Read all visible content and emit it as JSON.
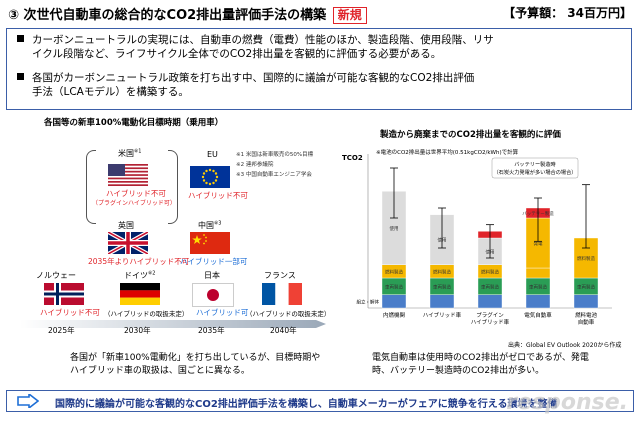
{
  "header": {
    "title": "③ 次世代自動車の総合的なCO2排出量評価手法の構築",
    "new_label": "新規",
    "budget": "【予算額： 34百万円】"
  },
  "intro": {
    "bullets": [
      {
        "line1": "カーボンニュートラルの実現には、自動車の燃費（電費）性能のほか、製造段階、使用段階、リサ",
        "line2": "イクル段階など、ライフサイクル全体でのCO2排出量を客観的に評価する必要がある。"
      },
      {
        "line1": "各国がカーボンニュートラル政策を打ち出す中、国際的に議論が可能な客観的なCO2排出評価",
        "line2": "手法（LCAモデル）を構築する。"
      }
    ]
  },
  "left_panel": {
    "title": "各国等の新車100%電動化目標時期（乗用車）",
    "notes": [
      "※1 米国は新車販売の50%目標",
      "※2 連邦参議院",
      "※3 中国自動車エンジニア学会"
    ],
    "countries": {
      "us": {
        "name": "米国",
        "sup": "※1",
        "status": "ハイブリッド不可",
        "sub": "（プラグインハイブリッド可）"
      },
      "eu": {
        "name": "EU",
        "status": "ハイブリッド不可"
      },
      "uk": {
        "name": "英国",
        "status": "2035年よりハイブリッド不可"
      },
      "cn": {
        "name": "中国",
        "sup": "※3",
        "status": "ハイブリッド一部可"
      },
      "no": {
        "name": "ノルウェー",
        "status": "ハイブリッド不可"
      },
      "de": {
        "name": "ドイツ",
        "sup": "※2",
        "status": "（ハイブリッドの取扱未定）"
      },
      "jp": {
        "name": "日本",
        "status": "ハイブリッド可"
      },
      "fr": {
        "name": "フランス",
        "status": "（ハイブリッドの取扱未定）"
      }
    },
    "years": [
      "2025年",
      "2030年",
      "2035年",
      "2040年"
    ],
    "caption1": "各国が「新車100%電動化」を打ち出しているが、目標時期や",
    "caption2": "ハイブリッド車の取扱は、国ごとに異なる。"
  },
  "right_panel": {
    "title": "製造から廃棄までのCO2排出量を客観的に評価",
    "source": "出典：Global EV Outlook 2020から作成",
    "caption1": "電気自動車は使用時のCO2排出がゼロであるが、発電",
    "caption2": "時、バッテリー製造時のCO2排出が多い。"
  },
  "chart_data": {
    "type": "bar",
    "ylabel": "TCO2",
    "annotation": "※電池のCO2排出量は世界平均(0.51kgCO2/kWh)で計算",
    "callout": "バッテリー製造時\n（石炭火力発電が多い場合の場合）",
    "categories": [
      "内燃機関",
      "ハイブリッド車",
      "プラグイン\nハイブリッド車",
      "電気自動車",
      "燃料電池\n自動車"
    ],
    "segments": [
      {
        "name": "組立・解体",
        "color": "#4a7dc9",
        "values": [
          4,
          4,
          4,
          4,
          4
        ]
      },
      {
        "name": "車両製造",
        "color": "#2a9d55",
        "values": [
          5,
          5,
          5,
          5,
          5
        ]
      },
      {
        "name": "燃料製造",
        "color": "#f5b800",
        "values": [
          4,
          4,
          4,
          3,
          12
        ]
      },
      {
        "name": "使用",
        "color": "#dcdcdc",
        "values": [
          22,
          15,
          8,
          0,
          0
        ]
      },
      {
        "name": "発電",
        "color": "#f5b800",
        "values": [
          0,
          0,
          0,
          15,
          0
        ]
      },
      {
        "name": "バッテリー製造",
        "color": "#e0242a",
        "values": [
          0,
          0,
          2,
          3,
          0
        ]
      }
    ],
    "segment_labels": [
      [
        "組立・解体",
        "車両製造",
        "燃料製造",
        "使用"
      ],
      [
        "車両製造",
        "燃料製造",
        "使用"
      ],
      [
        "車両製造",
        "燃料製造",
        "使用"
      ],
      [
        "車両製造",
        "バッテリー製造",
        "発電"
      ],
      [
        "車両製造",
        "燃料製造"
      ]
    ],
    "ylim": [
      0,
      45
    ],
    "error_bars": [
      [
        27,
        42
      ],
      [
        18,
        30
      ],
      [
        15,
        25
      ],
      [
        20,
        33
      ],
      [
        18,
        37
      ]
    ]
  },
  "bottom": {
    "text": "国際的に議論が可能な客観的なCO2排出評価手法を構築し、自動車メーカーがフェアに競争を行える環境を整備"
  },
  "watermark": "response."
}
